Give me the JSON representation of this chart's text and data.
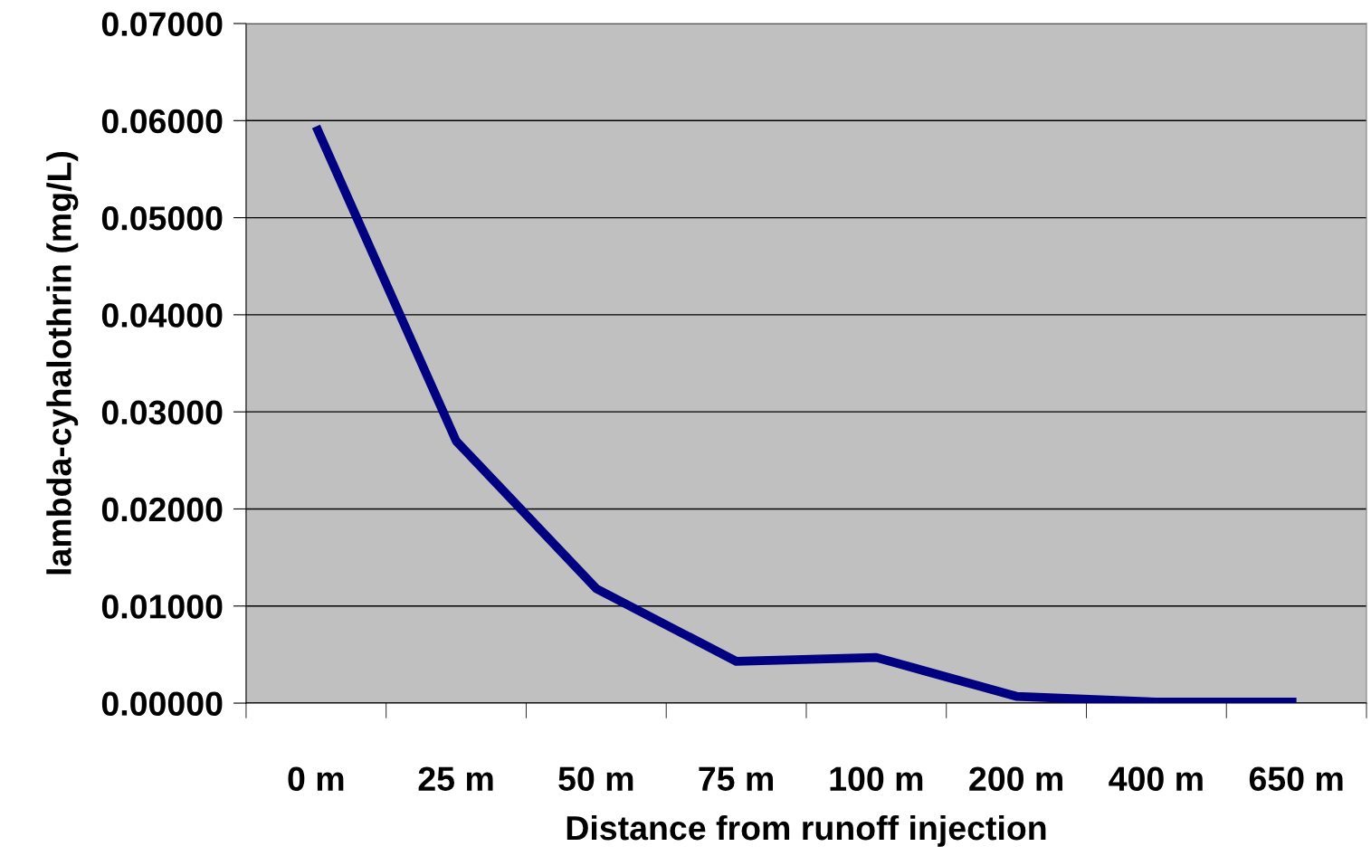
{
  "chart_data": {
    "type": "line",
    "xlabel": "Distance from runoff injection",
    "ylabel": "lambda-cyhalothrin (mg/L)",
    "categories": [
      "0 m",
      "25 m",
      "50 m",
      "75 m",
      "100 m",
      "200 m",
      "400 m",
      "650 m"
    ],
    "series": [
      {
        "color": "#000080",
        "values": [
          0.0594,
          0.027,
          0.0118,
          0.0043,
          0.0047,
          0.0007,
          0.0001,
          0.0001
        ]
      }
    ],
    "ylim": [
      0,
      0.07
    ],
    "yticks": [
      {
        "value": 0,
        "label": "0.00000"
      },
      {
        "value": 0.01,
        "label": "0.01000"
      },
      {
        "value": 0.02,
        "label": "0.02000"
      },
      {
        "value": 0.03,
        "label": "0.03000"
      },
      {
        "value": 0.04,
        "label": "0.04000"
      },
      {
        "value": 0.05,
        "label": "0.05000"
      },
      {
        "value": 0.06,
        "label": "0.06000"
      },
      {
        "value": 0.07,
        "label": "0.07000"
      }
    ],
    "grid": "y",
    "marker": "none",
    "line_style": "solid"
  }
}
